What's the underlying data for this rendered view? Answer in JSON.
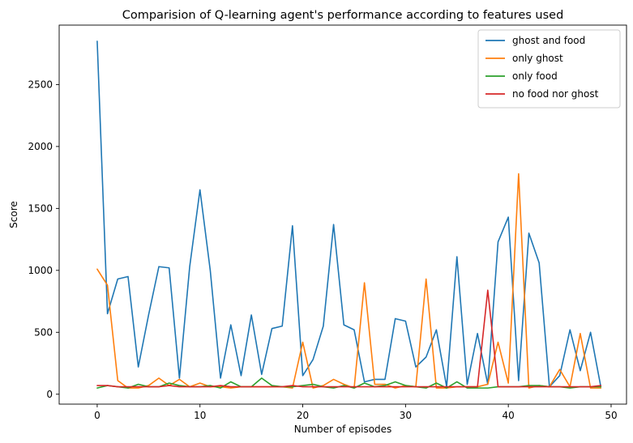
{
  "chart_data": {
    "type": "line",
    "title": "Comparision of Q-learning agent's performance according to features used",
    "xlabel": "Number of episodes",
    "ylabel": "Score",
    "xlim": [
      -3.7,
      51.5
    ],
    "ylim": [
      -80,
      2980
    ],
    "xticks": [
      0,
      10,
      20,
      30,
      40,
      50
    ],
    "yticks": [
      0,
      500,
      1000,
      1500,
      2000,
      2500
    ],
    "grid": false,
    "legend_position": "top-right",
    "x": [
      0,
      1,
      2,
      3,
      4,
      5,
      6,
      7,
      8,
      9,
      10,
      11,
      12,
      13,
      14,
      15,
      16,
      17,
      18,
      19,
      20,
      21,
      22,
      23,
      24,
      25,
      26,
      27,
      28,
      29,
      30,
      31,
      32,
      33,
      34,
      35,
      36,
      37,
      38,
      39,
      40,
      41,
      42,
      43,
      44,
      45,
      46,
      47,
      48,
      49
    ],
    "series": [
      {
        "name": "ghost and food",
        "color": "#1f77b4",
        "values": [
          2850,
          650,
          930,
          950,
          220,
          640,
          1030,
          1020,
          130,
          1030,
          1650,
          1000,
          130,
          560,
          150,
          640,
          160,
          530,
          550,
          1360,
          150,
          280,
          550,
          1370,
          560,
          520,
          100,
          120,
          120,
          610,
          590,
          220,
          300,
          520,
          60,
          1110,
          80,
          490,
          80,
          1230,
          1430,
          110,
          1300,
          1060,
          60,
          150,
          520,
          190,
          500,
          60
        ]
      },
      {
        "name": "only ghost",
        "color": "#ff7f0e",
        "values": [
          1010,
          880,
          110,
          50,
          50,
          70,
          130,
          70,
          120,
          60,
          90,
          60,
          60,
          50,
          60,
          60,
          60,
          60,
          60,
          50,
          420,
          50,
          70,
          120,
          80,
          50,
          900,
          80,
          80,
          50,
          70,
          60,
          930,
          50,
          50,
          60,
          60,
          60,
          80,
          420,
          90,
          1780,
          50,
          70,
          60,
          200,
          60,
          490,
          50,
          50
        ]
      },
      {
        "name": "only food",
        "color": "#2ca02c",
        "values": [
          50,
          70,
          60,
          50,
          80,
          60,
          60,
          90,
          70,
          60,
          60,
          70,
          50,
          100,
          60,
          60,
          130,
          70,
          60,
          60,
          70,
          80,
          60,
          50,
          70,
          50,
          90,
          60,
          70,
          100,
          70,
          60,
          50,
          90,
          50,
          100,
          50,
          50,
          50,
          60,
          60,
          60,
          70,
          70,
          60,
          60,
          50,
          60,
          60,
          60
        ]
      },
      {
        "name": "no food nor ghost",
        "color": "#d62728",
        "values": [
          70,
          70,
          60,
          60,
          60,
          60,
          60,
          70,
          60,
          60,
          60,
          60,
          70,
          60,
          60,
          60,
          60,
          60,
          60,
          70,
          60,
          60,
          60,
          60,
          60,
          60,
          60,
          60,
          60,
          60,
          60,
          60,
          60,
          60,
          60,
          60,
          60,
          60,
          840,
          60,
          60,
          60,
          60,
          60,
          60,
          60,
          60,
          60,
          60,
          70
        ]
      }
    ]
  }
}
